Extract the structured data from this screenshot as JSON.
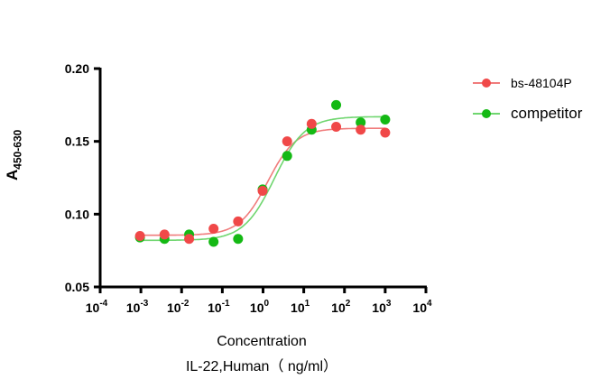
{
  "chart_data": {
    "type": "scatter",
    "xlabel_line1": "Concentration",
    "xlabel_line2": "IL-22,Human（ ng/ml）",
    "ylabel_main": "A",
    "ylabel_sub": "450-630",
    "xscale": "log",
    "xlim_exp": [
      -4,
      4
    ],
    "ylim": [
      0.05,
      0.2
    ],
    "yticks": [
      "0.05",
      "0.10",
      "0.15",
      "0.20"
    ],
    "xtick_base": "10",
    "xtick_exponents": [
      "-4",
      "-3",
      "-2",
      "-1",
      "0",
      "1",
      "2",
      "3",
      "4"
    ],
    "x": [
      0.00095,
      0.0038,
      0.0153,
      0.061,
      0.244,
      0.977,
      3.91,
      15.6,
      62.5,
      250,
      1000
    ],
    "series": [
      {
        "name": "bs-48104P",
        "color": "#f04848",
        "line_color": "#f07c7c",
        "values": [
          0.085,
          0.086,
          0.083,
          0.09,
          0.095,
          0.116,
          0.15,
          0.162,
          0.16,
          0.158,
          0.156
        ],
        "fit": {
          "bottom": 0.0855,
          "top": 0.159,
          "ec50": 1.3,
          "hill": 1.25
        }
      },
      {
        "name": "competitor",
        "color": "#14b914",
        "line_color": "#6fd66f",
        "values": [
          0.084,
          0.083,
          0.086,
          0.081,
          0.083,
          0.117,
          0.14,
          0.158,
          0.175,
          0.163,
          0.165
        ],
        "fit": {
          "bottom": 0.082,
          "top": 0.167,
          "ec50": 1.9,
          "hill": 1.15
        }
      }
    ],
    "legend_position": "top-right",
    "grid": false
  }
}
